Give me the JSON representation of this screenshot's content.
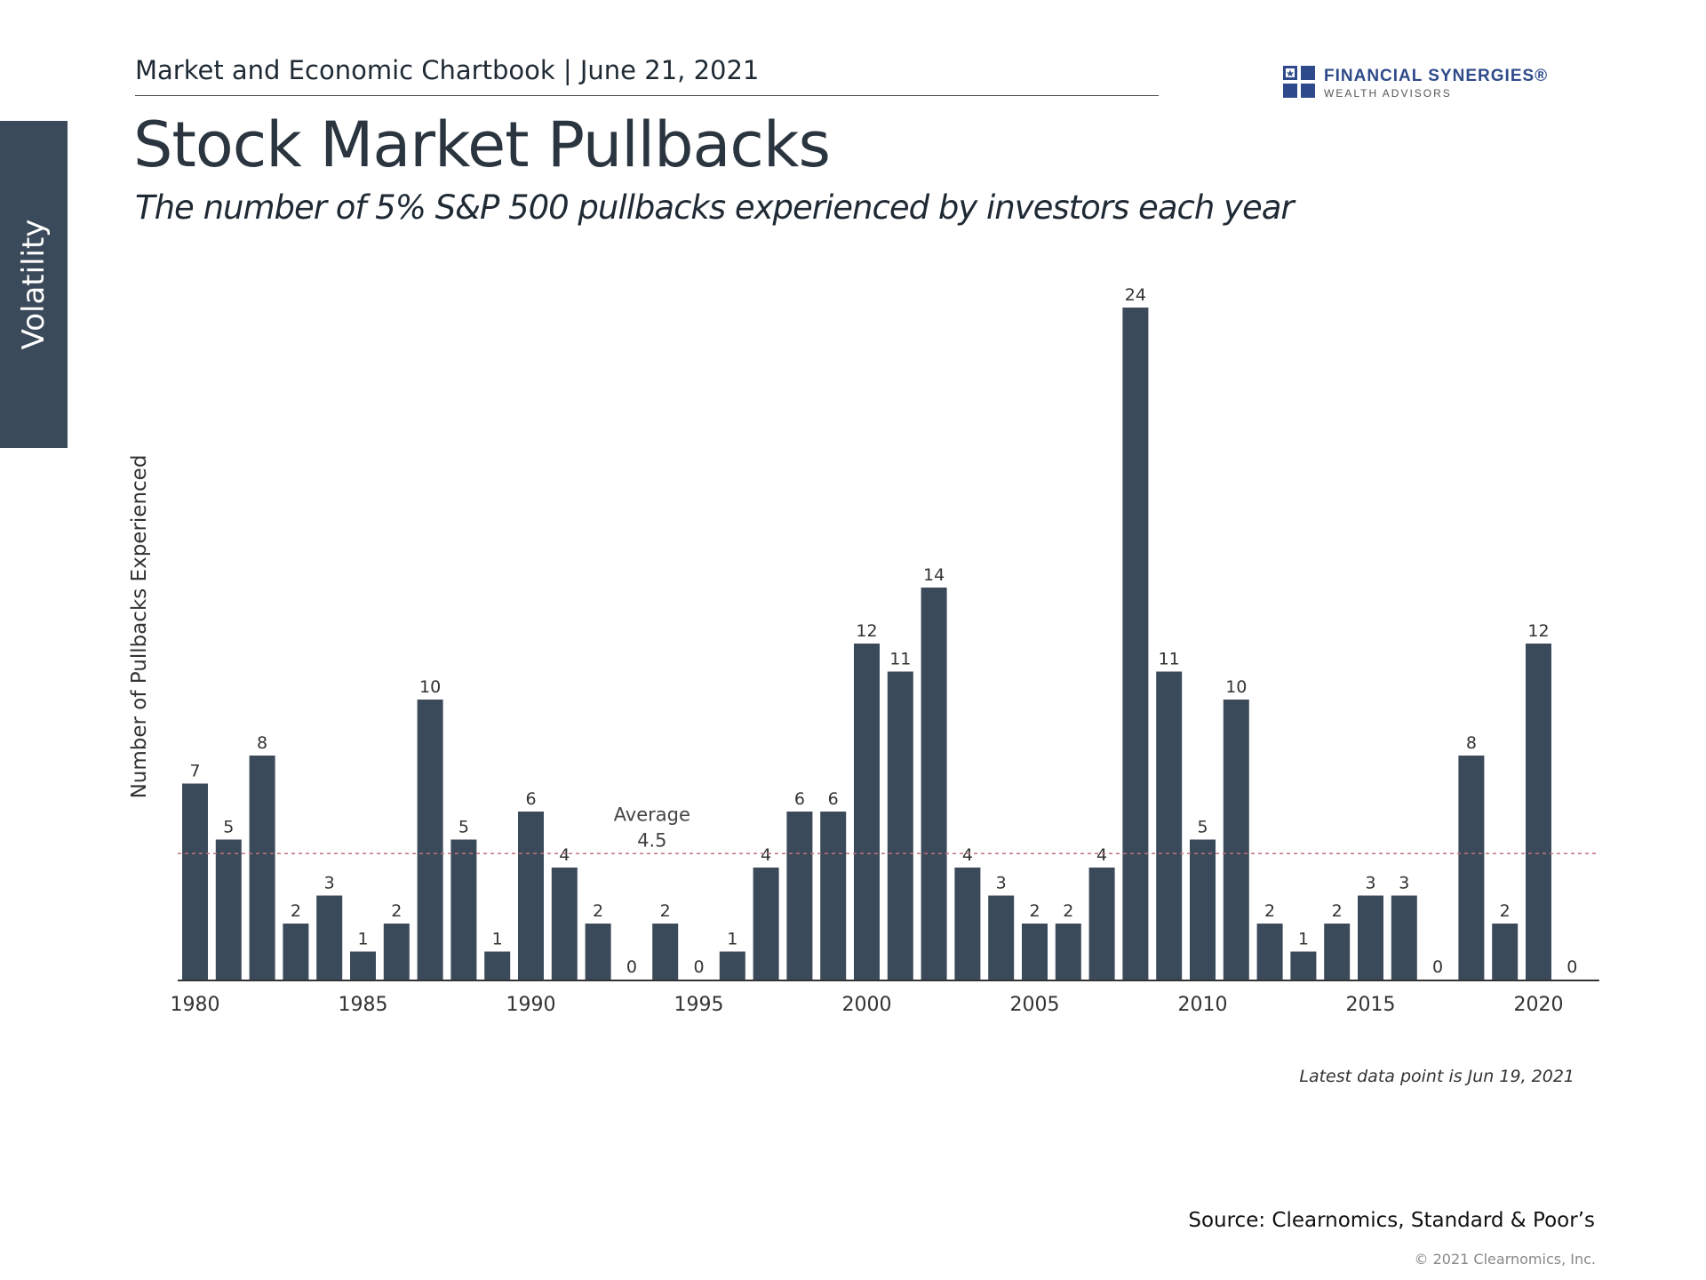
{
  "sidebar": {
    "tab_label": "Volatility"
  },
  "header": {
    "chartbook_line": "Market and Economic Chartbook | June 21, 2021"
  },
  "logo": {
    "name": "FINANCIAL SYNERGIES®",
    "sub": "WEALTH ADVISORS",
    "icon": "flag-grid-icon",
    "color": "#2e4a8a"
  },
  "colors": {
    "bar": "#3b4a5a",
    "average_line": "#c0707a",
    "tab": "#3b4a5a"
  },
  "chart_data": {
    "type": "bar",
    "title": "Stock Market Pullbacks",
    "subtitle": "The number of 5% S&P 500 pullbacks experienced by investors each year",
    "ylabel": "Number of Pullbacks Experienced",
    "xlabel": "",
    "categories": [
      1980,
      1981,
      1982,
      1983,
      1984,
      1985,
      1986,
      1987,
      1988,
      1989,
      1990,
      1991,
      1992,
      1993,
      1994,
      1995,
      1996,
      1997,
      1998,
      1999,
      2000,
      2001,
      2002,
      2003,
      2004,
      2005,
      2006,
      2007,
      2008,
      2009,
      2010,
      2011,
      2012,
      2013,
      2014,
      2015,
      2016,
      2017,
      2018,
      2019,
      2020,
      2021
    ],
    "values": [
      7,
      5,
      8,
      2,
      3,
      1,
      2,
      10,
      5,
      1,
      6,
      4,
      2,
      0,
      2,
      0,
      1,
      4,
      6,
      6,
      12,
      11,
      14,
      4,
      3,
      2,
      2,
      4,
      24,
      11,
      5,
      10,
      2,
      1,
      2,
      3,
      3,
      0,
      8,
      2,
      12,
      0
    ],
    "xticks": [
      "1980",
      "1985",
      "1990",
      "1995",
      "2000",
      "2005",
      "2010",
      "2015",
      "2020"
    ],
    "average": {
      "value": 4.5,
      "label": "Average",
      "value_label": "4.5"
    },
    "ylim": [
      0,
      24
    ],
    "grid": false,
    "legend": "none"
  },
  "footer": {
    "note": "Latest data point is Jun 19, 2021",
    "source": "Source: Clearnomics, Standard & Poor’s",
    "copyright": "© 2021 Clearnomics, Inc."
  }
}
